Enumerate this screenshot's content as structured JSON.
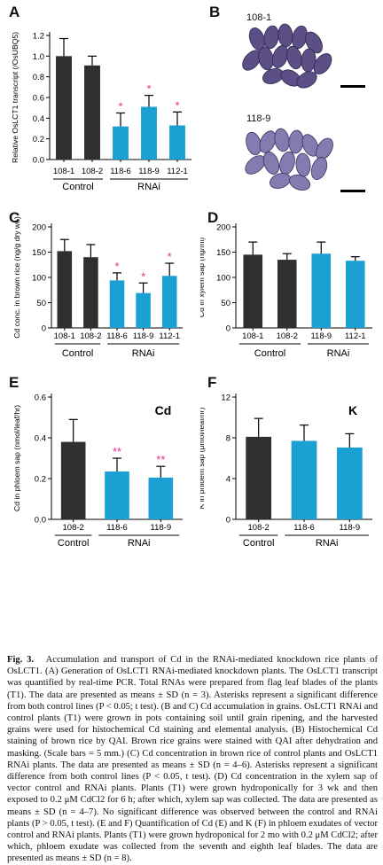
{
  "panels": {
    "a": "A",
    "b": "B",
    "c": "C",
    "d": "D",
    "e": "E",
    "f": "F"
  },
  "photos": {
    "top_label": "108-1",
    "bottom_label": "118-9"
  },
  "chart_data": [
    {
      "type": "bar",
      "panel": "A",
      "categories": [
        "108-1",
        "108-2",
        "118-6",
        "118-9",
        "112-1"
      ],
      "values": [
        1.0,
        0.91,
        0.32,
        0.51,
        0.33
      ],
      "errors": [
        0.17,
        0.09,
        0.13,
        0.11,
        0.13
      ],
      "significance": [
        "",
        "",
        "*",
        "*",
        "*"
      ],
      "colors": [
        "#2f2f2f",
        "#2f2f2f",
        "#1aa0d2",
        "#1aa0d2",
        "#1aa0d2"
      ],
      "ylabel": "Relative OsLCT1 transcript (/OsUBQ5)",
      "yticks": [
        "0.0",
        "0.2",
        "0.4",
        "0.6",
        "0.8",
        "1.0",
        "1.2"
      ],
      "ylim": [
        0,
        1.2
      ],
      "groups": [
        "Control",
        "RNAi"
      ]
    },
    {
      "type": "bar",
      "panel": "C",
      "categories": [
        "108-1",
        "108-2",
        "118-6",
        "118-9",
        "112-1"
      ],
      "values": [
        152,
        140,
        94,
        69,
        103
      ],
      "errors": [
        23,
        25,
        15,
        20,
        25
      ],
      "significance": [
        "",
        "",
        "*",
        "*",
        "*"
      ],
      "colors": [
        "#2f2f2f",
        "#2f2f2f",
        "#1aa0d2",
        "#1aa0d2",
        "#1aa0d2"
      ],
      "ylabel": "Cd conc. in brown rice (ng/g dry wt.)",
      "yticks": [
        "0",
        "50",
        "100",
        "150",
        "200"
      ],
      "ylim": [
        0,
        200
      ],
      "groups": [
        "Control",
        "RNAi"
      ]
    },
    {
      "type": "bar",
      "panel": "D",
      "categories": [
        "108-1",
        "108-2",
        "118-9",
        "112-1"
      ],
      "values": [
        145,
        135,
        147,
        133
      ],
      "errors": [
        25,
        12,
        23,
        8
      ],
      "significance": [
        "",
        "",
        "",
        ""
      ],
      "colors": [
        "#2f2f2f",
        "#2f2f2f",
        "#1aa0d2",
        "#1aa0d2"
      ],
      "ylabel": "Cd in xylem sap (ng/ml)",
      "yticks": [
        "0",
        "50",
        "100",
        "150",
        "200"
      ],
      "ylim": [
        0,
        200
      ],
      "groups": [
        "Control",
        "RNAi"
      ]
    },
    {
      "type": "bar",
      "panel": "E",
      "title": "Cd",
      "categories": [
        "108-2",
        "118-6",
        "118-9"
      ],
      "values": [
        0.38,
        0.235,
        0.205
      ],
      "errors": [
        0.11,
        0.065,
        0.055
      ],
      "significance": [
        "",
        "**",
        "**"
      ],
      "colors": [
        "#2f2f2f",
        "#1aa0d2",
        "#1aa0d2"
      ],
      "ylabel": "Cd in phloem sap (nmol/leaf/hr)",
      "yticks": [
        "0.0",
        "0.2",
        "0.4",
        "0.6"
      ],
      "ylim": [
        0,
        0.6
      ],
      "groups": [
        "Control",
        "RNAi"
      ]
    },
    {
      "type": "bar",
      "panel": "F",
      "title": "K",
      "categories": [
        "108-2",
        "118-6",
        "118-9"
      ],
      "values": [
        8.1,
        7.7,
        7.05
      ],
      "errors": [
        1.8,
        1.55,
        1.35
      ],
      "significance": [
        "",
        "",
        ""
      ],
      "colors": [
        "#2f2f2f",
        "#1aa0d2",
        "#1aa0d2"
      ],
      "ylabel": "K in phloem sap (μmol/leaf/hr)",
      "yticks": [
        "0",
        "4",
        "8",
        "12"
      ],
      "ylim": [
        0,
        12
      ],
      "groups": [
        "Control",
        "RNAi"
      ]
    }
  ],
  "caption": {
    "lead": "Fig. 3.",
    "title": "Accumulation and transport of Cd in the RNAi-mediated knockdown rice plants of OsLCT1.",
    "body": "(A) Generation of OsLCT1 RNAi-mediated knockdown plants. The OsLCT1 transcript was quantified by real-time PCR. Total RNAs were prepared from flag leaf blades of the plants (T1). The data are presented as means ± SD (n = 3). Asterisks represent a significant difference from both control lines (P < 0.05; t test). (B and C) Cd accumulation in grains. OsLCT1 RNAi and control plants (T1) were grown in pots containing soil until grain ripening, and the harvested grains were used for histochemical Cd staining and elemental analysis. (B) Histochemical Cd staining of brown rice by QAI. Brown rice grains were stained with QAI after dehydration and masking. (Scale bars = 5 mm.) (C) Cd concentration in brown rice of control plants and OsLCT1 RNAi plants. The data are presented as means ± SD (n = 4–6). Asterisks represent a significant difference from both control lines (P < 0.05, t test). (D) Cd concentration in the xylem sap of vector control and RNAi plants. Plants (T1) were grown hydroponically for 3 wk and then exposed to 0.2 μM CdCl2 for 6 h; after which, xylem sap was collected. The data are presented as means ± SD (n = 4–7). No significant difference was observed between the control and RNAi plants (P > 0.05, t test). (E and F) Quantification of Cd (E) and K (F) in phloem exudates of vector control and RNAi plants. Plants (T1) were grown hydroponical for 2 mo with 0.2 μM CdCl2; after which, phloem exudate was collected from the seventh and eighth leaf blades. The data are presented as means ± SD (n = 8)."
  }
}
